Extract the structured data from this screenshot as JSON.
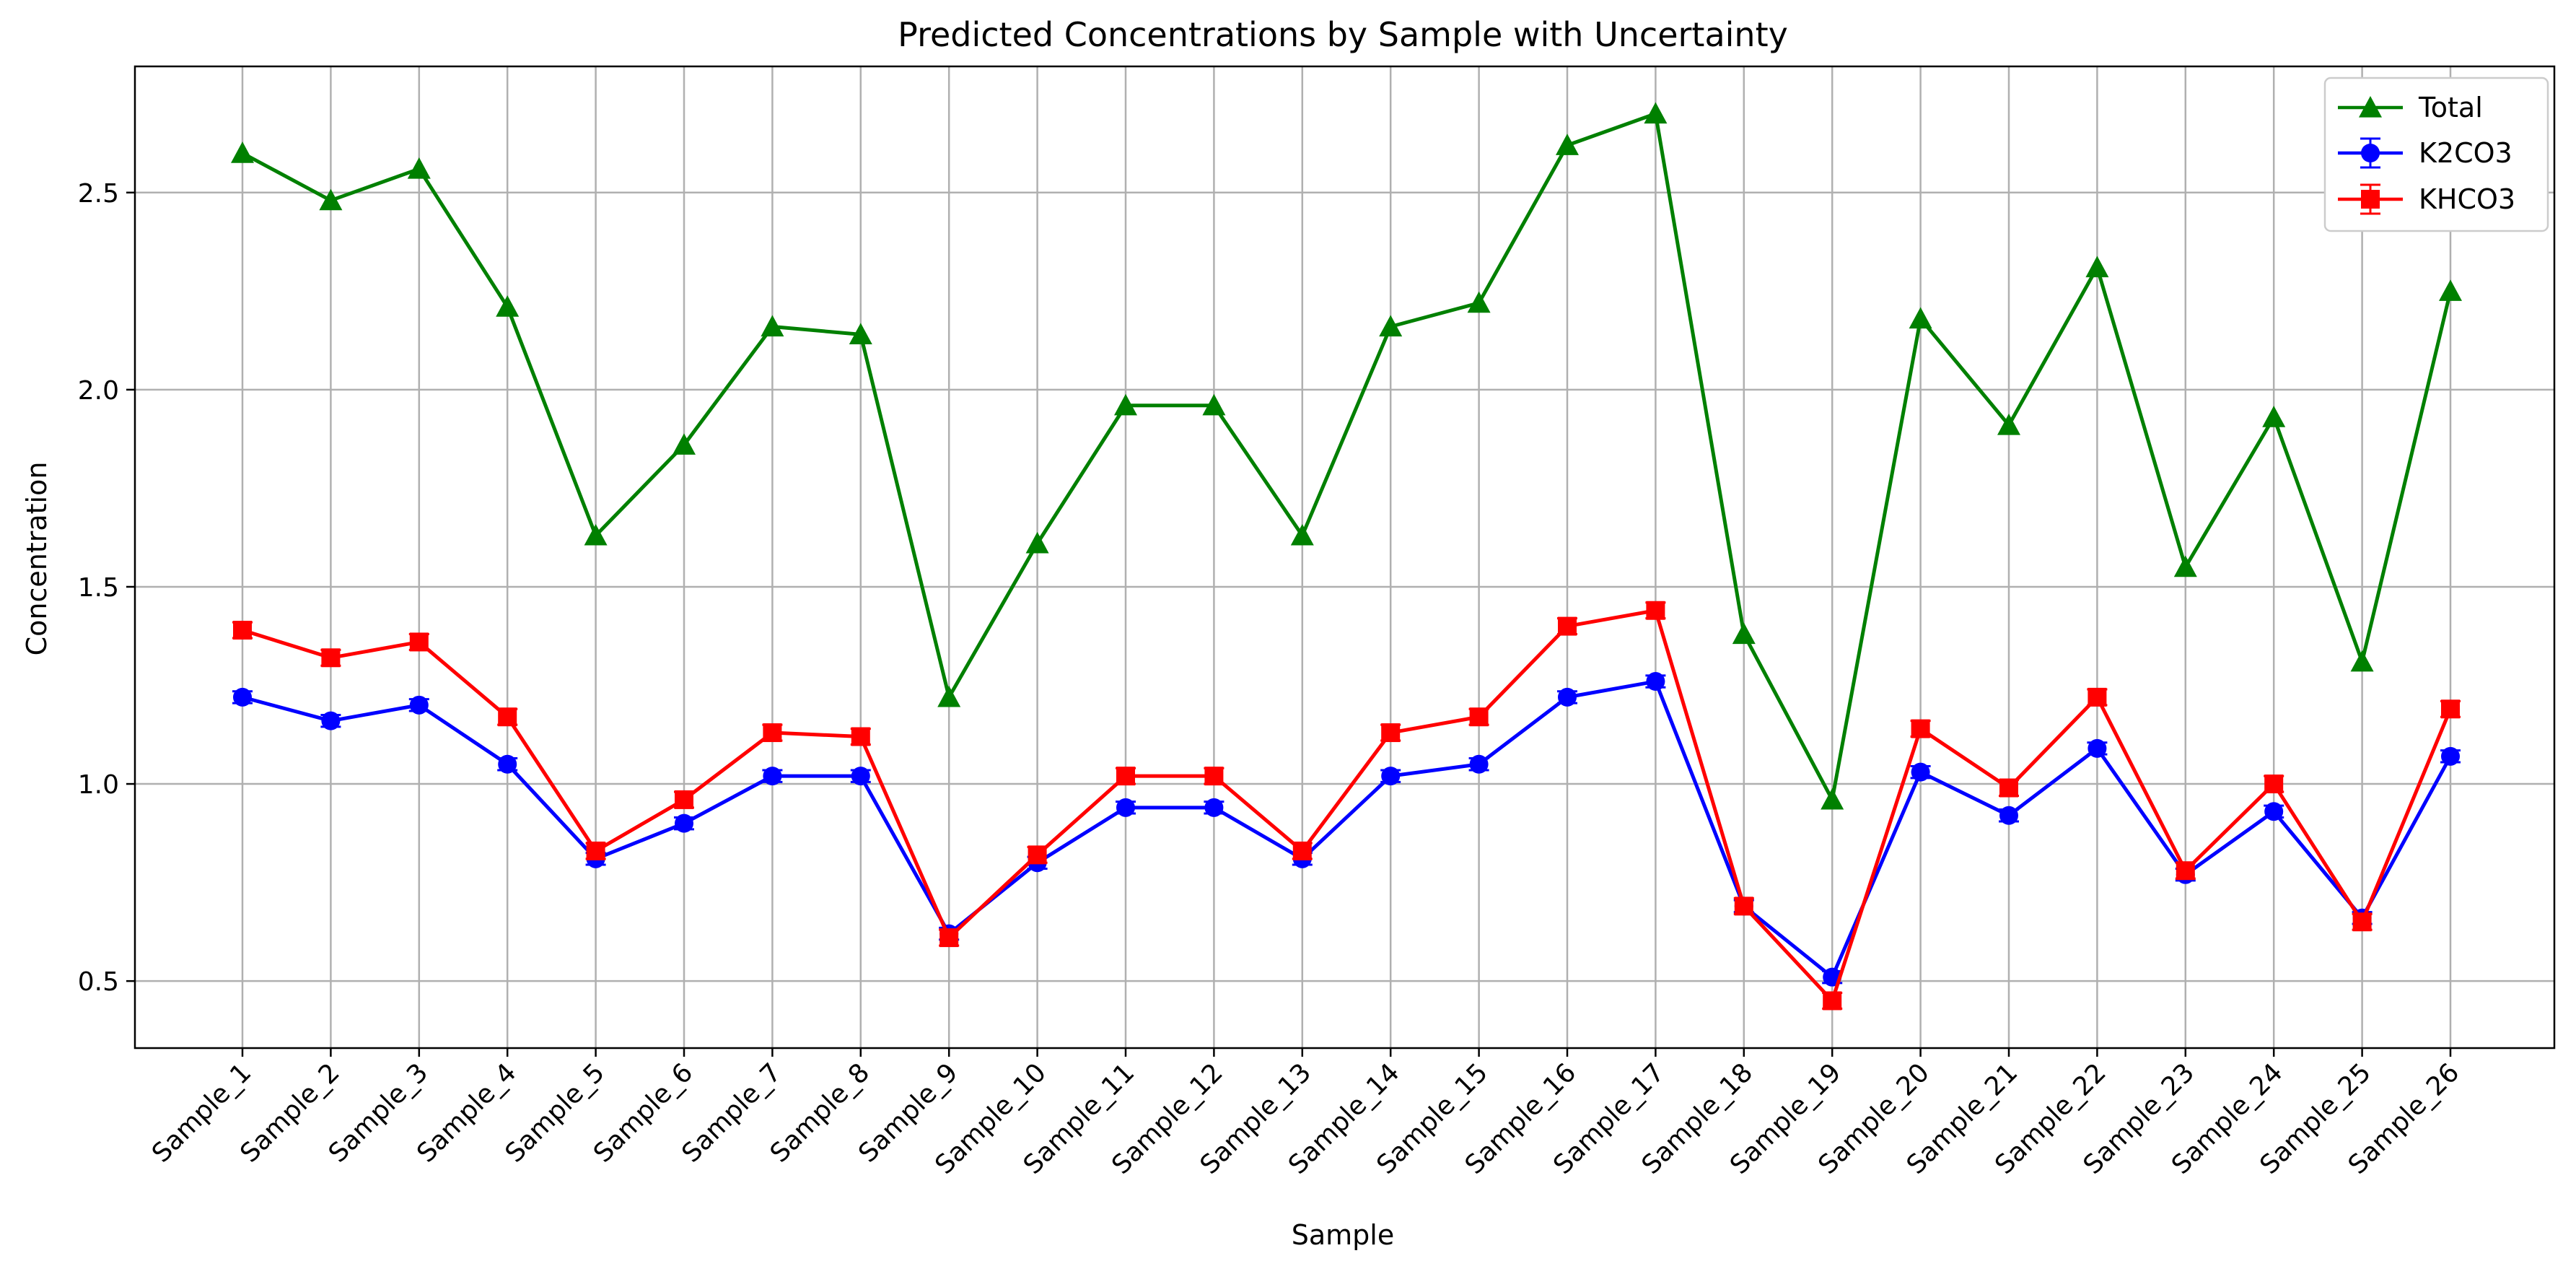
{
  "chart_data": {
    "type": "line",
    "title": "Predicted Concentrations by Sample with Uncertainty",
    "xlabel": "Sample",
    "ylabel": "Concentration",
    "ylim": [
      0.33,
      2.82
    ],
    "yticks": [
      0.5,
      1.0,
      1.5,
      2.0,
      2.5
    ],
    "ytick_labels": [
      "0.5",
      "1.0",
      "1.5",
      "2.0",
      "2.5"
    ],
    "grid": true,
    "legend_position": "top-right",
    "categories": [
      "Sample_1",
      "Sample_2",
      "Sample_3",
      "Sample_4",
      "Sample_5",
      "Sample_6",
      "Sample_7",
      "Sample_8",
      "Sample_9",
      "Sample_10",
      "Sample_11",
      "Sample_12",
      "Sample_13",
      "Sample_14",
      "Sample_15",
      "Sample_16",
      "Sample_17",
      "Sample_18",
      "Sample_19",
      "Sample_20",
      "Sample_21",
      "Sample_22",
      "Sample_23",
      "Sample_24",
      "Sample_25",
      "Sample_26"
    ],
    "series": [
      {
        "name": "Total",
        "color": "#008000",
        "marker": "triangle",
        "values": [
          2.6,
          2.48,
          2.56,
          2.21,
          1.63,
          1.86,
          2.16,
          2.14,
          1.22,
          1.61,
          1.96,
          1.96,
          1.63,
          2.16,
          2.22,
          2.62,
          2.7,
          1.38,
          0.96,
          2.18,
          1.91,
          2.31,
          1.55,
          1.93,
          1.31,
          2.25
        ]
      },
      {
        "name": "K2CO3",
        "color": "#0000ff",
        "marker": "circle",
        "error_bars": true,
        "values": [
          1.22,
          1.16,
          1.2,
          1.05,
          0.81,
          0.9,
          1.02,
          1.02,
          0.62,
          0.8,
          0.94,
          0.94,
          0.81,
          1.02,
          1.05,
          1.22,
          1.26,
          0.69,
          0.51,
          1.03,
          0.92,
          1.09,
          0.77,
          0.93,
          0.66,
          1.07
        ],
        "errors": [
          0.015,
          0.015,
          0.015,
          0.015,
          0.015,
          0.015,
          0.015,
          0.015,
          0.015,
          0.015,
          0.015,
          0.015,
          0.015,
          0.015,
          0.015,
          0.015,
          0.015,
          0.015,
          0.015,
          0.015,
          0.015,
          0.015,
          0.015,
          0.015,
          0.015,
          0.015
        ]
      },
      {
        "name": "KHCO3",
        "color": "#ff0000",
        "marker": "square",
        "error_bars": true,
        "values": [
          1.39,
          1.32,
          1.36,
          1.17,
          0.83,
          0.96,
          1.13,
          1.12,
          0.61,
          0.82,
          1.02,
          1.02,
          0.83,
          1.13,
          1.17,
          1.4,
          1.44,
          0.69,
          0.45,
          1.14,
          0.99,
          1.22,
          0.78,
          1.0,
          0.65,
          1.19
        ],
        "errors": [
          0.02,
          0.02,
          0.02,
          0.02,
          0.02,
          0.02,
          0.02,
          0.02,
          0.02,
          0.02,
          0.02,
          0.02,
          0.02,
          0.02,
          0.02,
          0.02,
          0.02,
          0.02,
          0.02,
          0.02,
          0.02,
          0.02,
          0.02,
          0.02,
          0.02,
          0.02
        ]
      }
    ]
  }
}
